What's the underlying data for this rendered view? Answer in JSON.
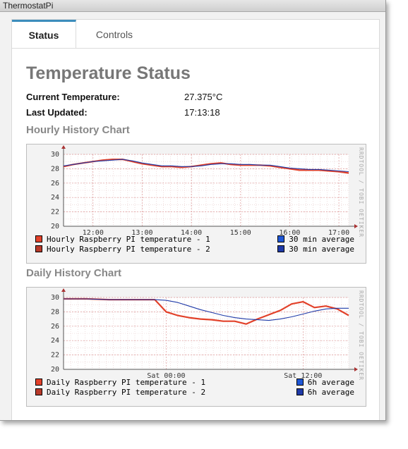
{
  "window": {
    "title": "ThermostatPi"
  },
  "tabs": [
    {
      "label": "Status",
      "active": true
    },
    {
      "label": "Controls",
      "active": false
    }
  ],
  "main": {
    "heading": "Temperature Status",
    "current_temperature": {
      "label": "Current Temperature:",
      "value": "27.375°C"
    },
    "last_updated": {
      "label": "Last Updated:",
      "value": "17:13:18"
    },
    "hourly_title": "Hourly History Chart",
    "daily_title": "Daily History Chart"
  },
  "chart_data": [
    {
      "type": "line",
      "title": "Hourly History Chart",
      "watermark": "RRDTOOL / TOBI OETIKER",
      "ylim": [
        20,
        30
      ],
      "yticks": [
        "30",
        "28",
        "26",
        "24",
        "22",
        "20"
      ],
      "xticks": [
        {
          "label": "12:00",
          "x": 12.0
        },
        {
          "label": "13:00",
          "x": 13.0
        },
        {
          "label": "14:00",
          "x": 14.0
        },
        {
          "label": "15:00",
          "x": 15.0
        },
        {
          "label": "16:00",
          "x": 16.0
        },
        {
          "label": "17:00",
          "x": 17.0
        }
      ],
      "xlim": [
        11.4,
        17.2
      ],
      "grid": true,
      "legend": [
        {
          "text": "Hourly Raspberry PI temperature - 1",
          "color": "#e2412a"
        },
        {
          "text": "Hourly Raspberry PI temperature - 2",
          "color": "#b83a2a"
        },
        {
          "text": "30 min average",
          "color": "#1f57d6"
        },
        {
          "text": "30 min average",
          "color": "#1f3aa8"
        }
      ],
      "series": [
        {
          "name": "Hourly Raspberry PI temperature - 1",
          "color": "#e2412a",
          "x": [
            11.4,
            11.6,
            11.8,
            12.0,
            12.2,
            12.4,
            12.6,
            12.8,
            13.0,
            13.2,
            13.4,
            13.6,
            13.8,
            14.0,
            14.2,
            14.4,
            14.6,
            14.8,
            15.0,
            15.2,
            15.4,
            15.6,
            15.8,
            16.0,
            16.2,
            16.4,
            16.6,
            16.8,
            17.0,
            17.2
          ],
          "y": [
            28.3,
            28.6,
            28.8,
            29.0,
            29.2,
            29.3,
            29.3,
            29.0,
            28.7,
            28.5,
            28.3,
            28.3,
            28.2,
            28.3,
            28.5,
            28.7,
            28.8,
            28.6,
            28.5,
            28.5,
            28.5,
            28.4,
            28.2,
            28.0,
            27.8,
            27.8,
            27.8,
            27.7,
            27.6,
            27.4
          ]
        },
        {
          "name": "30 min average",
          "color": "#1f3aa8",
          "x": [
            11.4,
            11.6,
            11.8,
            12.0,
            12.2,
            12.4,
            12.6,
            12.8,
            13.0,
            13.2,
            13.4,
            13.6,
            13.8,
            14.0,
            14.2,
            14.4,
            14.6,
            14.8,
            15.0,
            15.2,
            15.4,
            15.6,
            15.8,
            16.0,
            16.2,
            16.4,
            16.6,
            16.8,
            17.0,
            17.2
          ],
          "y": [
            28.4,
            28.6,
            28.8,
            29.0,
            29.1,
            29.2,
            29.3,
            29.1,
            28.8,
            28.6,
            28.4,
            28.4,
            28.3,
            28.3,
            28.4,
            28.6,
            28.7,
            28.7,
            28.6,
            28.6,
            28.5,
            28.5,
            28.3,
            28.1,
            28.0,
            27.9,
            27.9,
            27.8,
            27.7,
            27.6
          ]
        }
      ]
    },
    {
      "type": "line",
      "title": "Daily History Chart",
      "watermark": "RRDTOOL / TOBI OETIKER",
      "ylim": [
        20,
        30
      ],
      "yticks": [
        "30",
        "28",
        "26",
        "24",
        "22",
        "20"
      ],
      "xticks": [
        {
          "label": "Sat 00:00",
          "x": 24.0
        },
        {
          "label": "Sat 12:00",
          "x": 36.0
        }
      ],
      "xlim": [
        15.0,
        40.0
      ],
      "grid": true,
      "legend": [
        {
          "text": "Daily Raspberry PI temperature - 1",
          "color": "#e2412a"
        },
        {
          "text": "Daily Raspberry PI temperature - 2",
          "color": "#b83a2a"
        },
        {
          "text": "6h average",
          "color": "#1f57d6"
        },
        {
          "text": "6h average",
          "color": "#1f3aa8"
        }
      ],
      "series": [
        {
          "name": "Daily Raspberry PI temperature - 1",
          "color": "#e2412a",
          "x": [
            15,
            17,
            19,
            21,
            22,
            23,
            24,
            25,
            26,
            27,
            28,
            29,
            30,
            31,
            32,
            33,
            34,
            35,
            36,
            37,
            38,
            39,
            40
          ],
          "y": [
            29.8,
            29.8,
            29.7,
            29.7,
            29.7,
            29.7,
            28.0,
            27.5,
            27.2,
            27.0,
            26.9,
            26.7,
            26.7,
            26.3,
            27.0,
            27.6,
            28.2,
            29.1,
            29.4,
            28.6,
            28.8,
            28.4,
            27.5
          ]
        },
        {
          "name": "6h average",
          "color": "#1f3aa8",
          "x": [
            15,
            17,
            19,
            21,
            22,
            23,
            24,
            25,
            26,
            27,
            28,
            29,
            30,
            31,
            32,
            33,
            34,
            35,
            36,
            37,
            38,
            39,
            40
          ],
          "y": [
            29.8,
            29.8,
            29.7,
            29.7,
            29.7,
            29.7,
            29.6,
            29.3,
            28.8,
            28.3,
            27.9,
            27.5,
            27.2,
            27.0,
            26.9,
            26.8,
            27.0,
            27.3,
            27.7,
            28.1,
            28.4,
            28.5,
            28.5
          ]
        }
      ]
    }
  ]
}
